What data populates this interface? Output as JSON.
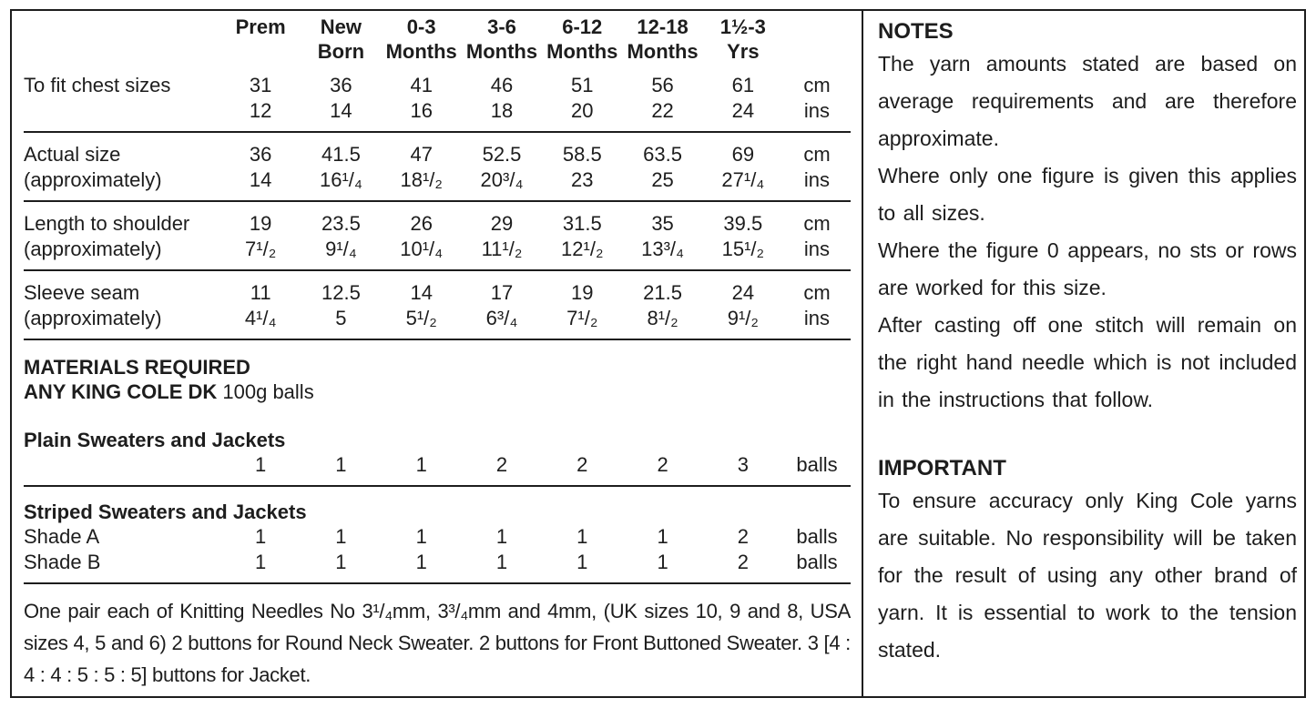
{
  "palette": {
    "text": "#1d1d1d",
    "background": "#ffffff",
    "rule": "#1d1d1d"
  },
  "size_table": {
    "header_line1": [
      "Prem",
      "New",
      "0-3",
      "3-6",
      "6-12",
      "12-18",
      "1½-3"
    ],
    "header_line2": [
      "",
      "Born",
      "Months",
      "Months",
      "Months",
      "Months",
      "Yrs"
    ],
    "unit_cm": "cm",
    "unit_ins": "ins",
    "rows": [
      {
        "label": "To fit chest sizes",
        "label2": "",
        "cm": [
          "31",
          "36",
          "41",
          "46",
          "51",
          "56",
          "61"
        ],
        "ins": [
          "12",
          "14",
          "16",
          "18",
          "20",
          "22",
          "24"
        ]
      },
      {
        "label": "Actual size",
        "label2": "(approximately)",
        "cm": [
          "36",
          "41.5",
          "47",
          "52.5",
          "58.5",
          "63.5",
          "69"
        ],
        "ins": [
          "14",
          "16¹/₄",
          "18¹/₂",
          "20³/₄",
          "23",
          "25",
          "27¹/₄"
        ]
      },
      {
        "label": "Length to shoulder",
        "label2": "(approximately)",
        "cm": [
          "19",
          "23.5",
          "26",
          "29",
          "31.5",
          "35",
          "39.5"
        ],
        "ins": [
          "7¹/₂",
          "9¹/₄",
          "10¹/₄",
          "11¹/₂",
          "12¹/₂",
          "13³/₄",
          "15¹/₂"
        ]
      },
      {
        "label": "Sleeve seam",
        "label2": "(approximately)",
        "cm": [
          "11",
          "12.5",
          "14",
          "17",
          "19",
          "21.5",
          "24"
        ],
        "ins": [
          "4¹/₄",
          "5",
          "5¹/₂",
          "6³/₄",
          "7¹/₂",
          "8¹/₂",
          "9¹/₂"
        ]
      }
    ]
  },
  "materials": {
    "heading": "MATERIALS REQUIRED",
    "yarn_bold": "ANY KING COLE DK",
    "yarn_regular": " 100g balls",
    "plain": {
      "heading": "Plain Sweaters and Jackets",
      "values": [
        "1",
        "1",
        "1",
        "2",
        "2",
        "2",
        "3"
      ],
      "unit": "balls"
    },
    "striped": {
      "heading": "Striped Sweaters and Jackets",
      "rows": [
        {
          "label": "Shade A",
          "values": [
            "1",
            "1",
            "1",
            "1",
            "1",
            "1",
            "2"
          ],
          "unit": "balls"
        },
        {
          "label": "Shade B",
          "values": [
            "1",
            "1",
            "1",
            "1",
            "1",
            "1",
            "2"
          ],
          "unit": "balls"
        }
      ]
    },
    "needles_note": "One pair each of Knitting Needles No 3¹/₄mm, 3³/₄mm and 4mm, (UK sizes 10, 9 and 8, USA sizes 4, 5 and 6) 2 buttons for Round Neck Sweater. 2 buttons for Front Buttoned Sweater. 3 [4 : 4 : 4 : 5 : 5 : 5] buttons for Jacket."
  },
  "notes": {
    "title": "NOTES",
    "paragraphs": [
      "The yarn amounts stated are based on average requirements and are therefore approximate.",
      "Where only one figure is given this applies to all sizes.",
      "Where the figure 0 appears, no sts or rows are worked for this size.",
      "After casting off one stitch will remain on the right hand needle which is not included in the instructions that follow."
    ]
  },
  "important": {
    "title": "IMPORTANT",
    "paragraphs": [
      "To ensure accuracy only King Cole yarns are suitable. No responsibility will be taken for the result of using any other brand of yarn. It is essential to work to the tension stated."
    ]
  }
}
